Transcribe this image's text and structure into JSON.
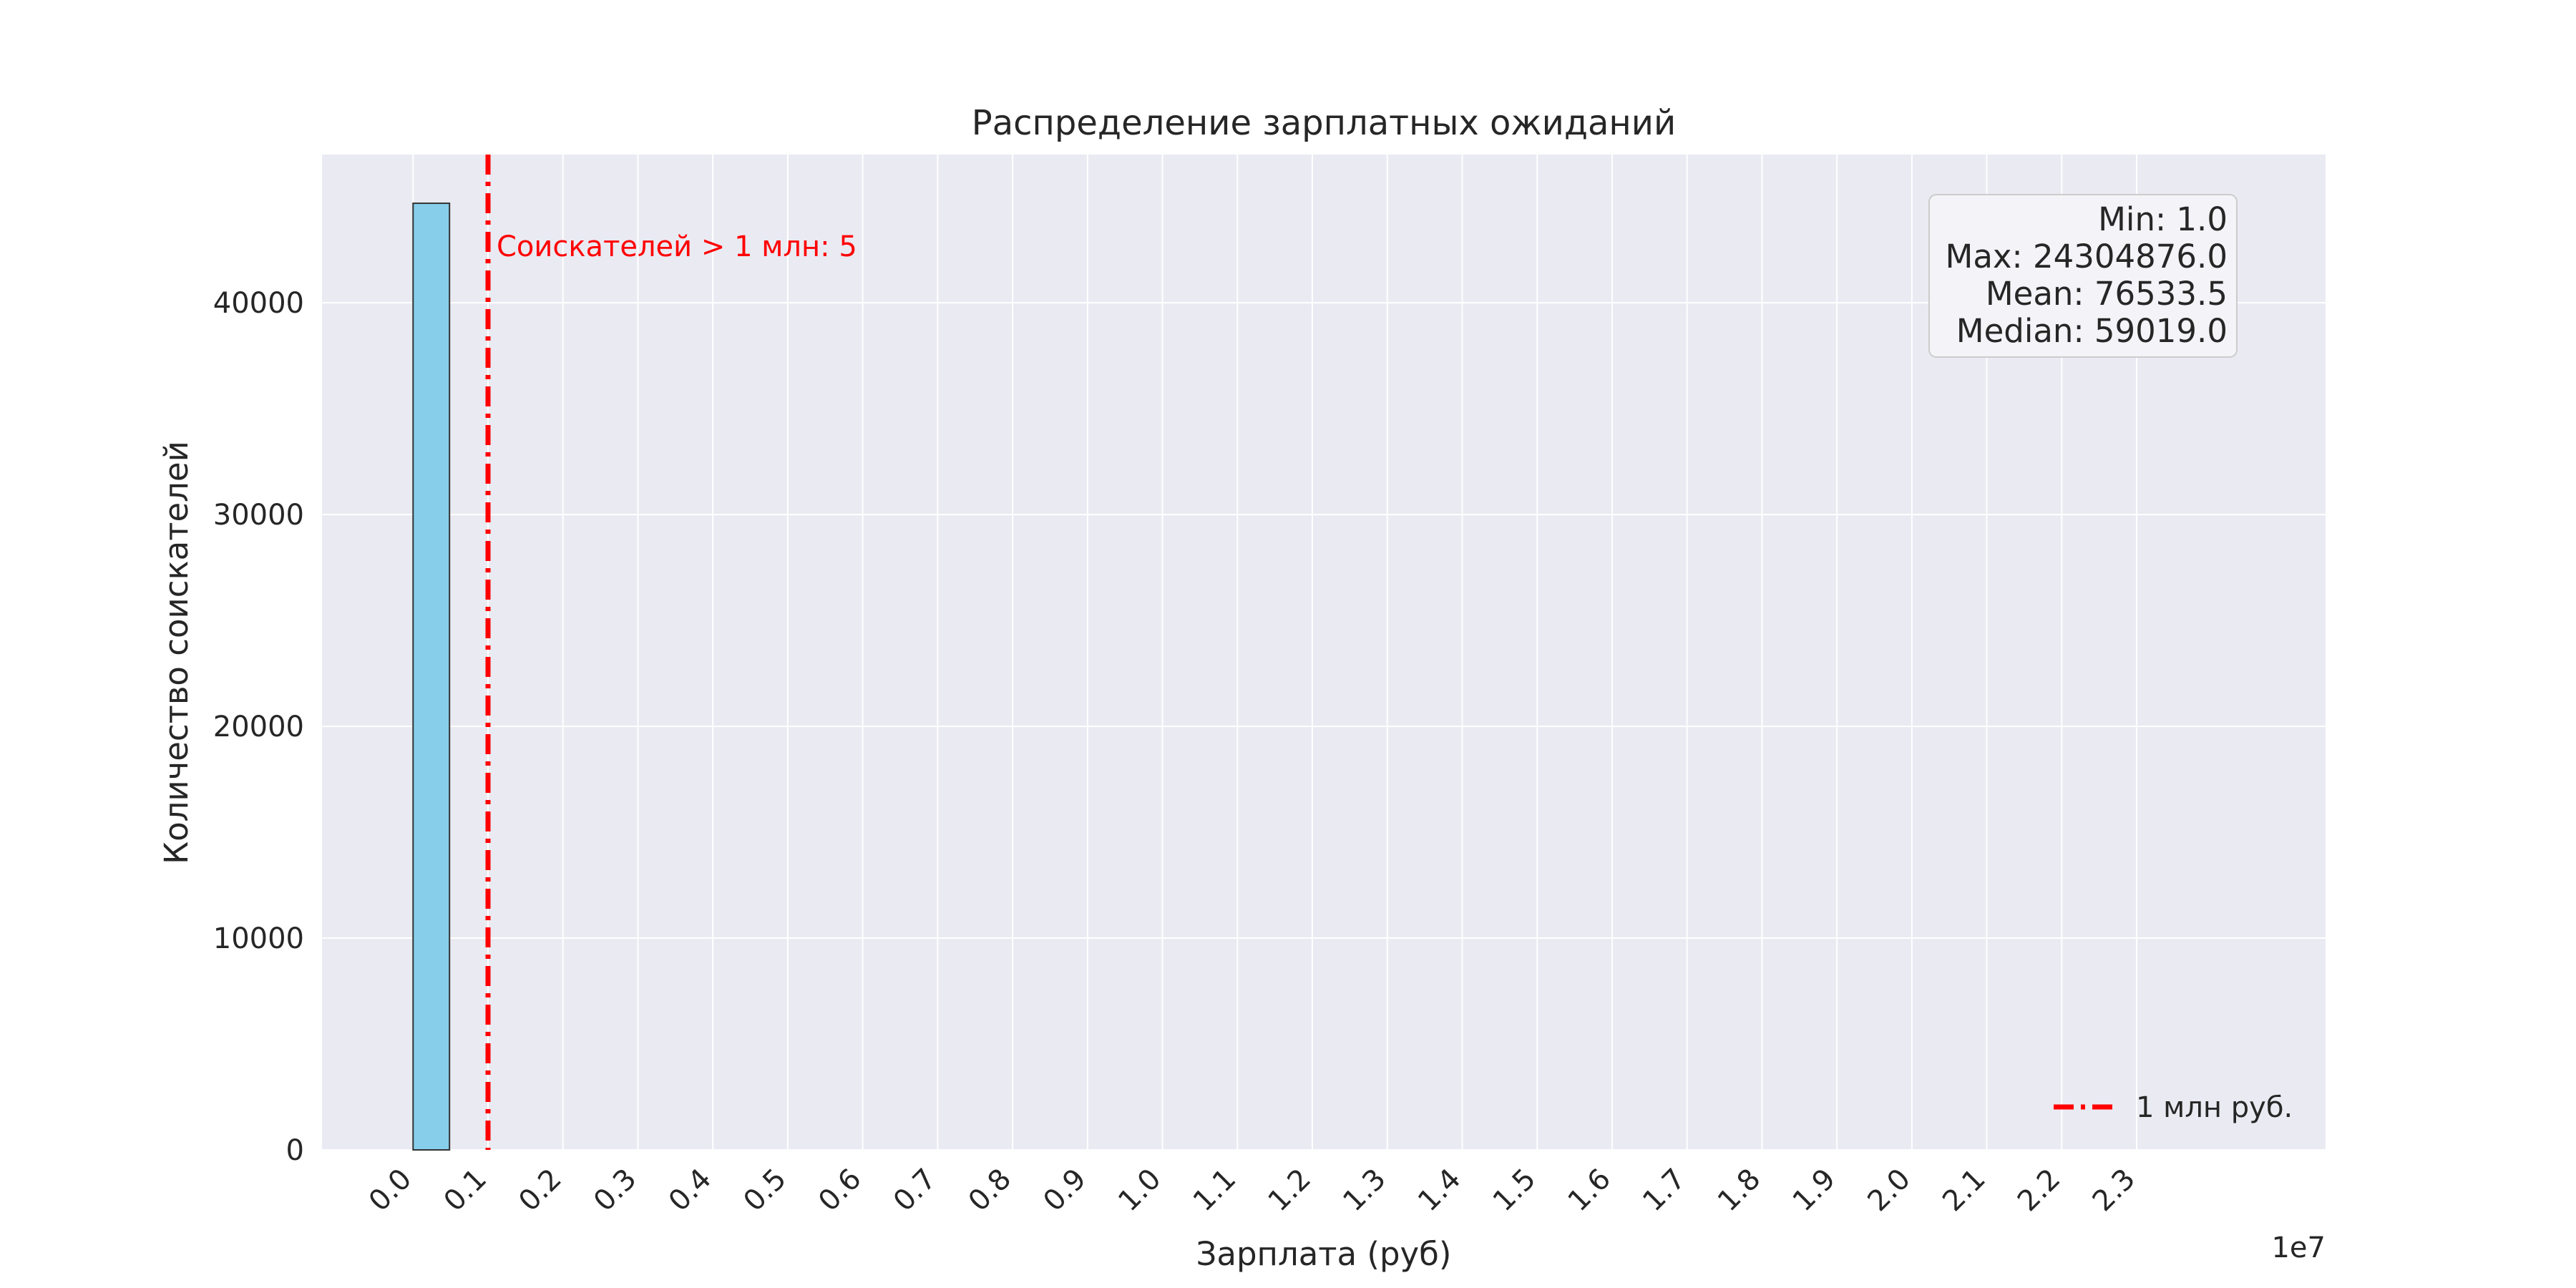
{
  "chart_data": {
    "type": "bar",
    "title": "Распределение зарплатных ожиданий",
    "xlabel": "Зарплата (руб)",
    "ylabel": "Количество соискателей",
    "x_offset_label": "1e7",
    "x_scale": 10000000,
    "xlim": [
      -1215243.75,
      25520119.75
    ],
    "ylim": [
      0,
      47000
    ],
    "x_ticks": [
      "0.0",
      "0.1",
      "0.2",
      "0.3",
      "0.4",
      "0.5",
      "0.6",
      "0.7",
      "0.8",
      "0.9",
      "1.0",
      "1.1",
      "1.2",
      "1.3",
      "1.4",
      "1.5",
      "1.6",
      "1.7",
      "1.8",
      "1.9",
      "2.0",
      "2.1",
      "2.2",
      "2.3"
    ],
    "y_ticks": [
      "0",
      "10000",
      "20000",
      "30000",
      "40000"
    ],
    "grid": true,
    "bins": [
      {
        "x0": 1,
        "x1": 486098,
        "count": 44700
      },
      {
        "x0": 486098,
        "x1": 972196,
        "count": 0
      }
    ],
    "bar_color": "#87ceeb",
    "threshold": {
      "value": 1000000,
      "color": "#ff0000",
      "label": "1 млн руб.",
      "annotation": "Соискателей > 1 млн: 5"
    },
    "stats": [
      "Min: 1.0",
      "Max: 24304876.0",
      "Mean: 76533.5",
      "Median: 59019.0"
    ],
    "legend_position": "lower-right",
    "stats_position": "upper-right"
  }
}
